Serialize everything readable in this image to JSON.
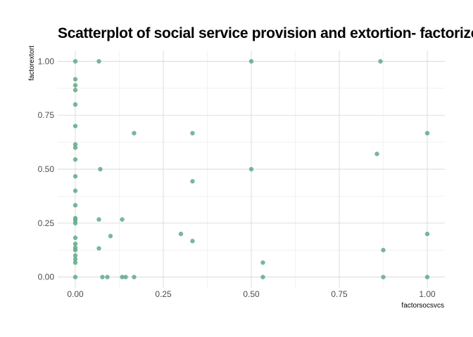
{
  "chart_data": {
    "type": "scatter",
    "title": "Scatterplot of social service provision and extortion- factorized",
    "xlabel": "factorsocsvcs",
    "ylabel": "factorextort",
    "xlim": [
      -0.05,
      1.05
    ],
    "ylim": [
      -0.05,
      1.05
    ],
    "xticks": [
      "0.00",
      "0.25",
      "0.50",
      "0.75",
      "1.00"
    ],
    "yticks": [
      "0.00",
      "0.25",
      "0.50",
      "0.75",
      "1.00"
    ],
    "grid": true,
    "legend": "none",
    "point_color": "#5FAA88",
    "points": [
      {
        "x": 0,
        "y": 1.0
      },
      {
        "x": 0,
        "y": 0.917
      },
      {
        "x": 0,
        "y": 0.889
      },
      {
        "x": 0,
        "y": 0.867
      },
      {
        "x": 0,
        "y": 0.8
      },
      {
        "x": 0,
        "y": 0.7
      },
      {
        "x": 0,
        "y": 0.615
      },
      {
        "x": 0,
        "y": 0.6
      },
      {
        "x": 0,
        "y": 0.545
      },
      {
        "x": 0,
        "y": 0.467
      },
      {
        "x": 0,
        "y": 0.4
      },
      {
        "x": 0,
        "y": 0.333
      },
      {
        "x": 0,
        "y": 0.273
      },
      {
        "x": 0,
        "y": 0.263
      },
      {
        "x": 0,
        "y": 0.25
      },
      {
        "x": 0,
        "y": 0.182
      },
      {
        "x": 0,
        "y": 0.154
      },
      {
        "x": 0,
        "y": 0.136
      },
      {
        "x": 0,
        "y": 0.125
      },
      {
        "x": 0,
        "y": 0.1
      },
      {
        "x": 0,
        "y": 0.083
      },
      {
        "x": 0,
        "y": 0.067
      },
      {
        "x": 0,
        "y": 0.0
      },
      {
        "x": 0.067,
        "y": 1.0
      },
      {
        "x": 0.071,
        "y": 0.5
      },
      {
        "x": 0.067,
        "y": 0.267
      },
      {
        "x": 0.067,
        "y": 0.133
      },
      {
        "x": 0.077,
        "y": 0.0
      },
      {
        "x": 0.091,
        "y": 0.0
      },
      {
        "x": 0.1,
        "y": 0.19
      },
      {
        "x": 0.133,
        "y": 0.267
      },
      {
        "x": 0.133,
        "y": 0.0
      },
      {
        "x": 0.143,
        "y": 0.0
      },
      {
        "x": 0.167,
        "y": 0.667
      },
      {
        "x": 0.167,
        "y": 0.0
      },
      {
        "x": 0.3,
        "y": 0.2
      },
      {
        "x": 0.333,
        "y": 0.667
      },
      {
        "x": 0.333,
        "y": 0.444
      },
      {
        "x": 0.333,
        "y": 0.167
      },
      {
        "x": 0.5,
        "y": 1.0
      },
      {
        "x": 0.5,
        "y": 0.5
      },
      {
        "x": 0.533,
        "y": 0.067
      },
      {
        "x": 0.533,
        "y": 0.0
      },
      {
        "x": 0.857,
        "y": 0.571
      },
      {
        "x": 0.867,
        "y": 1.0
      },
      {
        "x": 0.875,
        "y": 0.125
      },
      {
        "x": 0.875,
        "y": 0.0
      },
      {
        "x": 1.0,
        "y": 0.667
      },
      {
        "x": 1.0,
        "y": 0.2
      },
      {
        "x": 1.0,
        "y": 0.0
      }
    ]
  }
}
